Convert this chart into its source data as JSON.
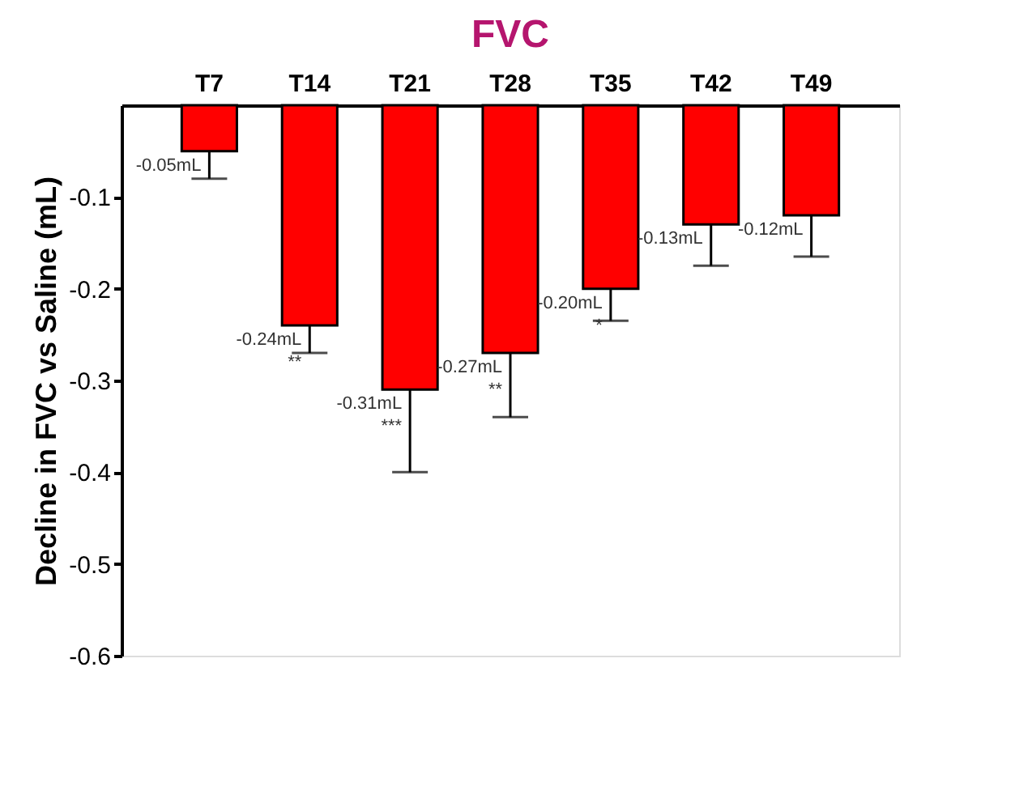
{
  "chart_data": {
    "type": "bar",
    "title": "FVC",
    "ylabel": "Decline in FVC vs Saline (mL)",
    "categories": [
      "T7",
      "T14",
      "T21",
      "T28",
      "T35",
      "T42",
      "T49"
    ],
    "values": [
      -0.05,
      -0.24,
      -0.31,
      -0.27,
      -0.2,
      -0.13,
      -0.12
    ],
    "color": "#ff0000",
    "errors": [
      [
        -0.08,
        -0.05
      ],
      [
        -0.27,
        -0.24
      ],
      [
        -0.4,
        -0.31
      ],
      [
        -0.34,
        -0.27
      ],
      [
        -0.235,
        -0.2
      ],
      [
        -0.175,
        -0.13
      ],
      [
        -0.165,
        -0.12
      ]
    ],
    "value_labels": [
      "-0.05mL",
      "-0.24mL\n**",
      "-0.31mL\n***",
      "-0.27mL\n**",
      "-0.20mL\n*",
      "-0.13mL",
      "-0.12mL"
    ],
    "ylim": [
      -0.6,
      0
    ],
    "yticks": [
      -0.1,
      -0.2,
      -0.3,
      -0.4,
      -0.5,
      -0.6
    ],
    "grid": false
  }
}
